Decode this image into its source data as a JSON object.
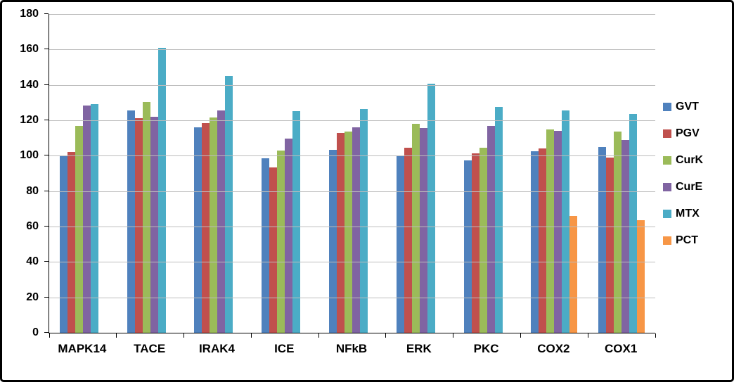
{
  "chart_data": {
    "type": "bar",
    "title": "",
    "xlabel": "",
    "ylabel": "",
    "ylim": [
      0,
      180
    ],
    "ytick_step": 20,
    "ytick_labels": [
      "0",
      "20",
      "40",
      "60",
      "80",
      "100",
      "120",
      "140",
      "160",
      "180"
    ],
    "grid": true,
    "gridline_color": "#bdbdbd",
    "legend_position": "right",
    "categories": [
      "MAPK14",
      "TACE",
      "IRAK4",
      "ICE",
      "NFkB",
      "ERK",
      "PKC",
      "COX2",
      "COX1"
    ],
    "series": [
      {
        "name": "GVT",
        "color": "#4F81BD",
        "values": [
          100,
          125.5,
          116,
          98.5,
          103.5,
          100,
          97.5,
          102.5,
          105
        ]
      },
      {
        "name": "PGV",
        "color": "#C0504D",
        "values": [
          102,
          121,
          118.5,
          93.5,
          113,
          104.5,
          101.5,
          104,
          99
        ]
      },
      {
        "name": "CurK",
        "color": "#9BBB59",
        "values": [
          117,
          130.5,
          121.5,
          103,
          113.5,
          118,
          104.5,
          115,
          113.5
        ]
      },
      {
        "name": "CurE",
        "color": "#8064A2",
        "values": [
          128.5,
          122,
          125.5,
          109.5,
          116,
          115.5,
          117,
          114,
          109
        ]
      },
      {
        "name": "MTX",
        "color": "#4BACC6",
        "values": [
          129,
          161,
          145,
          125,
          126.5,
          140.5,
          127.5,
          125.5,
          123.5
        ]
      },
      {
        "name": "PCT",
        "color": "#F79646",
        "values": [
          0,
          0,
          0,
          0,
          0,
          0,
          0,
          66,
          63.5
        ]
      }
    ]
  }
}
